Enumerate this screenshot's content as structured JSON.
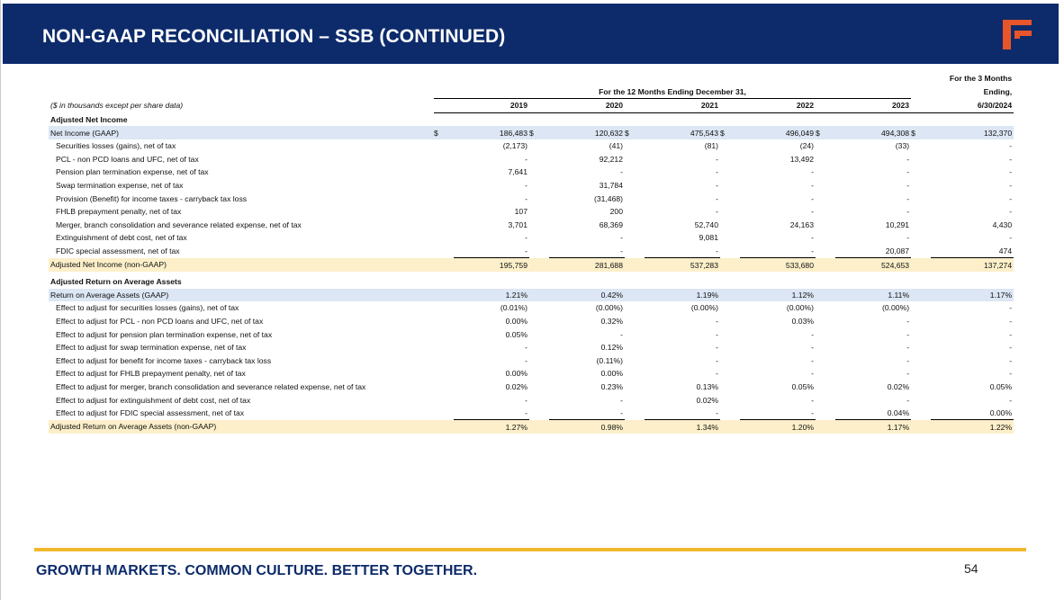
{
  "header": {
    "title": "NON-GAAP RECONCILIATION – SSB (CONTINUED)"
  },
  "table": {
    "units_note": "($ in thousands except per share data)",
    "span_header": "For the 12 Months Ending December 31,",
    "three_month_header": [
      "For the 3 Months",
      "Ending,"
    ],
    "years": [
      "2019",
      "2020",
      "2021",
      "2022",
      "2023",
      "6/30/2024"
    ],
    "sections": [
      {
        "title": "Adjusted Net Income",
        "gaap_label": "Net Income (GAAP)",
        "gaap_values": [
          "186,483",
          "120,632",
          "475,543",
          "496,049",
          "494,308",
          "132,370"
        ],
        "rows": [
          {
            "label": "Securities losses (gains), net of tax",
            "values": [
              "(2,173)",
              "(41)",
              "(81)",
              "(24)",
              "(33)",
              "-"
            ]
          },
          {
            "label": "PCL - non PCD loans and UFC, net of tax",
            "values": [
              "-",
              "92,212",
              "-",
              "13,492",
              "-",
              "-"
            ]
          },
          {
            "label": "Pension plan termination expense, net of tax",
            "values": [
              "7,641",
              "-",
              "-",
              "-",
              "-",
              "-"
            ]
          },
          {
            "label": "Swap termination expense, net of tax",
            "values": [
              "-",
              "31,784",
              "-",
              "-",
              "-",
              "-"
            ]
          },
          {
            "label": "Provision (Benefit) for income taxes - carryback tax loss",
            "values": [
              "-",
              "(31,468)",
              "-",
              "-",
              "-",
              "-"
            ]
          },
          {
            "label": "FHLB prepayment penalty, net of tax",
            "values": [
              "107",
              "200",
              "-",
              "-",
              "-",
              "-"
            ]
          },
          {
            "label": "Merger, branch consolidation and severance related expense, net of tax",
            "values": [
              "3,701",
              "68,369",
              "52,740",
              "24,163",
              "10,291",
              "4,430"
            ]
          },
          {
            "label": "Extinguishment of debt cost, net of tax",
            "values": [
              "-",
              "-",
              "9,081",
              "-",
              "-",
              "-"
            ]
          },
          {
            "label": "FDIC special assessment, net of tax",
            "values": [
              "-",
              "-",
              "-",
              "-",
              "20,087",
              "474"
            ]
          }
        ],
        "total_label": "Adjusted Net Income (non-GAAP)",
        "total_values": [
          "195,759",
          "281,688",
          "537,283",
          "533,680",
          "524,653",
          "137,274"
        ]
      },
      {
        "title": "Adjusted Return on Average Assets",
        "gaap_label": "Return on Average Assets (GAAP)",
        "gaap_values": [
          "1.21%",
          "0.42%",
          "1.19%",
          "1.12%",
          "1.11%",
          "1.17%"
        ],
        "rows": [
          {
            "label": "Effect to adjust for securities losses (gains), net of tax",
            "values": [
              "(0.01%)",
              "(0.00%)",
              "(0.00%)",
              "(0.00%)",
              "(0.00%)",
              "-"
            ]
          },
          {
            "label": "Effect to adjust for PCL - non PCD loans and UFC, net of tax",
            "values": [
              "0.00%",
              "0.32%",
              "-",
              "0.03%",
              "-",
              "-"
            ]
          },
          {
            "label": "Effect to adjust for pension plan termination expense, net of tax",
            "values": [
              "0.05%",
              "-",
              "-",
              "-",
              "-",
              "-"
            ]
          },
          {
            "label": "Effect to adjust for swap termination expense, net of tax",
            "values": [
              "-",
              "0.12%",
              "-",
              "-",
              "-",
              "-"
            ]
          },
          {
            "label": "Effect to adjust for benefit for income taxes - carryback tax loss",
            "values": [
              "-",
              "(0.11%)",
              "-",
              "-",
              "-",
              "-"
            ]
          },
          {
            "label": "Effect to adjust for FHLB prepayment penalty, net of tax",
            "values": [
              "0.00%",
              "0.00%",
              "-",
              "-",
              "-",
              "-"
            ]
          },
          {
            "label": "Effect to adjust for merger, branch consolidation and severance related expense, net of tax",
            "values": [
              "0.02%",
              "0.23%",
              "0.13%",
              "0.05%",
              "0.02%",
              "0.05%"
            ]
          },
          {
            "label": "Effect to adjust for extinguishment of debt cost, net of tax",
            "values": [
              "-",
              "-",
              "0.02%",
              "-",
              "-",
              "-"
            ]
          },
          {
            "label": "Effect to adjust for FDIC special assessment, net of tax",
            "values": [
              "-",
              "-",
              "-",
              "-",
              "0.04%",
              "0.00%"
            ]
          }
        ],
        "total_label": "Adjusted Return on Average Assets (non-GAAP)",
        "total_values": [
          "1.27%",
          "0.98%",
          "1.34%",
          "1.20%",
          "1.17%",
          "1.22%"
        ]
      }
    ],
    "dollar_sign": "$"
  },
  "footer": {
    "tagline": "GROWTH MARKETS. COMMON CULTURE. BETTER TOGETHER.",
    "page_number": "54"
  },
  "colors": {
    "navy": "#0d2b6b",
    "orange_logo": "#e8552a",
    "gold_rule": "#f0b82e",
    "gaap_row_bg": "#dce6f4",
    "adjusted_row_bg": "#fcefc9"
  },
  "logo": {
    "icon": "ssb-f-logo-icon"
  }
}
